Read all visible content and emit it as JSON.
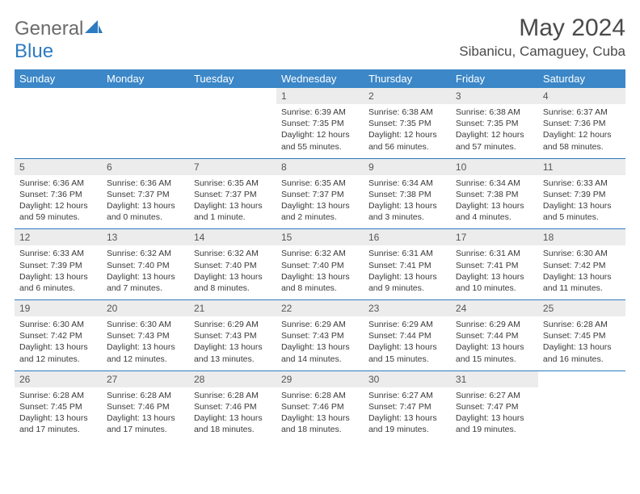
{
  "brand": {
    "word1": "General",
    "word2": "Blue"
  },
  "title": "May 2024",
  "location": "Sibanicu, Camaguey, Cuba",
  "colors": {
    "header_bg": "#3b87c8",
    "header_text": "#ffffff",
    "rule": "#2d7bc0",
    "daynum_bg": "#ececec",
    "body_text": "#3a3a3a",
    "title_text": "#4a4a4a",
    "logo_gray": "#6b6b6b",
    "logo_blue": "#2d7bc0"
  },
  "daysOfWeek": [
    "Sunday",
    "Monday",
    "Tuesday",
    "Wednesday",
    "Thursday",
    "Friday",
    "Saturday"
  ],
  "weeks": [
    [
      null,
      null,
      null,
      {
        "n": "1",
        "sr": "6:39 AM",
        "ss": "7:35 PM",
        "dl": "12 hours and 55 minutes."
      },
      {
        "n": "2",
        "sr": "6:38 AM",
        "ss": "7:35 PM",
        "dl": "12 hours and 56 minutes."
      },
      {
        "n": "3",
        "sr": "6:38 AM",
        "ss": "7:35 PM",
        "dl": "12 hours and 57 minutes."
      },
      {
        "n": "4",
        "sr": "6:37 AM",
        "ss": "7:36 PM",
        "dl": "12 hours and 58 minutes."
      }
    ],
    [
      {
        "n": "5",
        "sr": "6:36 AM",
        "ss": "7:36 PM",
        "dl": "12 hours and 59 minutes."
      },
      {
        "n": "6",
        "sr": "6:36 AM",
        "ss": "7:37 PM",
        "dl": "13 hours and 0 minutes."
      },
      {
        "n": "7",
        "sr": "6:35 AM",
        "ss": "7:37 PM",
        "dl": "13 hours and 1 minute."
      },
      {
        "n": "8",
        "sr": "6:35 AM",
        "ss": "7:37 PM",
        "dl": "13 hours and 2 minutes."
      },
      {
        "n": "9",
        "sr": "6:34 AM",
        "ss": "7:38 PM",
        "dl": "13 hours and 3 minutes."
      },
      {
        "n": "10",
        "sr": "6:34 AM",
        "ss": "7:38 PM",
        "dl": "13 hours and 4 minutes."
      },
      {
        "n": "11",
        "sr": "6:33 AM",
        "ss": "7:39 PM",
        "dl": "13 hours and 5 minutes."
      }
    ],
    [
      {
        "n": "12",
        "sr": "6:33 AM",
        "ss": "7:39 PM",
        "dl": "13 hours and 6 minutes."
      },
      {
        "n": "13",
        "sr": "6:32 AM",
        "ss": "7:40 PM",
        "dl": "13 hours and 7 minutes."
      },
      {
        "n": "14",
        "sr": "6:32 AM",
        "ss": "7:40 PM",
        "dl": "13 hours and 8 minutes."
      },
      {
        "n": "15",
        "sr": "6:32 AM",
        "ss": "7:40 PM",
        "dl": "13 hours and 8 minutes."
      },
      {
        "n": "16",
        "sr": "6:31 AM",
        "ss": "7:41 PM",
        "dl": "13 hours and 9 minutes."
      },
      {
        "n": "17",
        "sr": "6:31 AM",
        "ss": "7:41 PM",
        "dl": "13 hours and 10 minutes."
      },
      {
        "n": "18",
        "sr": "6:30 AM",
        "ss": "7:42 PM",
        "dl": "13 hours and 11 minutes."
      }
    ],
    [
      {
        "n": "19",
        "sr": "6:30 AM",
        "ss": "7:42 PM",
        "dl": "13 hours and 12 minutes."
      },
      {
        "n": "20",
        "sr": "6:30 AM",
        "ss": "7:43 PM",
        "dl": "13 hours and 12 minutes."
      },
      {
        "n": "21",
        "sr": "6:29 AM",
        "ss": "7:43 PM",
        "dl": "13 hours and 13 minutes."
      },
      {
        "n": "22",
        "sr": "6:29 AM",
        "ss": "7:43 PM",
        "dl": "13 hours and 14 minutes."
      },
      {
        "n": "23",
        "sr": "6:29 AM",
        "ss": "7:44 PM",
        "dl": "13 hours and 15 minutes."
      },
      {
        "n": "24",
        "sr": "6:29 AM",
        "ss": "7:44 PM",
        "dl": "13 hours and 15 minutes."
      },
      {
        "n": "25",
        "sr": "6:28 AM",
        "ss": "7:45 PM",
        "dl": "13 hours and 16 minutes."
      }
    ],
    [
      {
        "n": "26",
        "sr": "6:28 AM",
        "ss": "7:45 PM",
        "dl": "13 hours and 17 minutes."
      },
      {
        "n": "27",
        "sr": "6:28 AM",
        "ss": "7:46 PM",
        "dl": "13 hours and 17 minutes."
      },
      {
        "n": "28",
        "sr": "6:28 AM",
        "ss": "7:46 PM",
        "dl": "13 hours and 18 minutes."
      },
      {
        "n": "29",
        "sr": "6:28 AM",
        "ss": "7:46 PM",
        "dl": "13 hours and 18 minutes."
      },
      {
        "n": "30",
        "sr": "6:27 AM",
        "ss": "7:47 PM",
        "dl": "13 hours and 19 minutes."
      },
      {
        "n": "31",
        "sr": "6:27 AM",
        "ss": "7:47 PM",
        "dl": "13 hours and 19 minutes."
      },
      null
    ]
  ],
  "labels": {
    "sunrise": "Sunrise:",
    "sunset": "Sunset:",
    "daylight": "Daylight:"
  }
}
